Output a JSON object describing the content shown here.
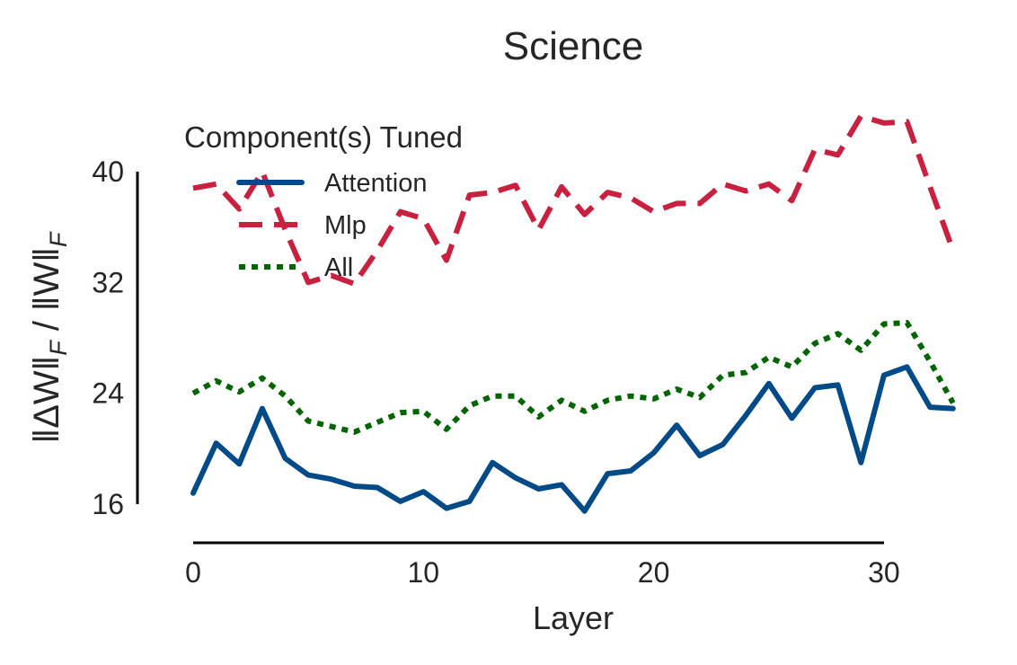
{
  "chart_data": {
    "type": "line",
    "title": "Science",
    "xlabel": "Layer",
    "ylabel": "‖ΔW‖F / ‖W‖F",
    "xlim": [
      0,
      33
    ],
    "ylim": [
      16,
      40
    ],
    "x_ticks": [
      0,
      10,
      20,
      30
    ],
    "y_ticks": [
      16,
      24,
      32,
      40
    ],
    "grid": false,
    "legend": {
      "title": "Component(s) Tuned",
      "position": "top-left"
    },
    "x": [
      0,
      1,
      2,
      3,
      4,
      5,
      6,
      7,
      8,
      9,
      10,
      11,
      12,
      13,
      14,
      15,
      16,
      17,
      18,
      19,
      20,
      21,
      22,
      23,
      24,
      25,
      26,
      27,
      28,
      29,
      30,
      31,
      32,
      33
    ],
    "series": [
      {
        "name": "Attention",
        "color": "#004a87",
        "style": "solid",
        "values": [
          16.8,
          20.4,
          18.9,
          22.9,
          19.3,
          18.1,
          17.8,
          17.3,
          17.2,
          16.2,
          16.9,
          15.7,
          16.2,
          19.0,
          17.9,
          17.1,
          17.4,
          15.5,
          18.2,
          18.4,
          19.7,
          21.7,
          19.5,
          20.3,
          22.4,
          24.7,
          22.2,
          24.4,
          24.6,
          19.0,
          25.3,
          25.9,
          23.0,
          22.9
        ]
      },
      {
        "name": "Mlp",
        "color": "#c8213f",
        "style": "dashed",
        "values": [
          38.8,
          39.1,
          37.3,
          40.0,
          35.8,
          32.0,
          32.5,
          31.9,
          34.3,
          37.1,
          36.6,
          33.6,
          38.3,
          38.5,
          39.0,
          35.8,
          38.9,
          36.9,
          38.5,
          38.1,
          37.1,
          37.7,
          37.7,
          39.1,
          38.6,
          39.1,
          37.9,
          41.6,
          41.2,
          44.0,
          43.5,
          43.6,
          38.9,
          34.3
        ]
      },
      {
        "name": "All",
        "color": "#006400",
        "style": "dotted",
        "values": [
          24.0,
          24.9,
          24.1,
          25.1,
          23.8,
          22.0,
          21.6,
          21.2,
          21.9,
          22.6,
          22.7,
          21.4,
          23.1,
          23.8,
          23.8,
          22.3,
          23.5,
          22.7,
          23.5,
          23.8,
          23.6,
          24.3,
          23.7,
          25.3,
          25.5,
          26.6,
          25.9,
          27.6,
          28.3,
          27.1,
          29.0,
          29.1,
          26.3,
          23.3
        ]
      }
    ]
  }
}
